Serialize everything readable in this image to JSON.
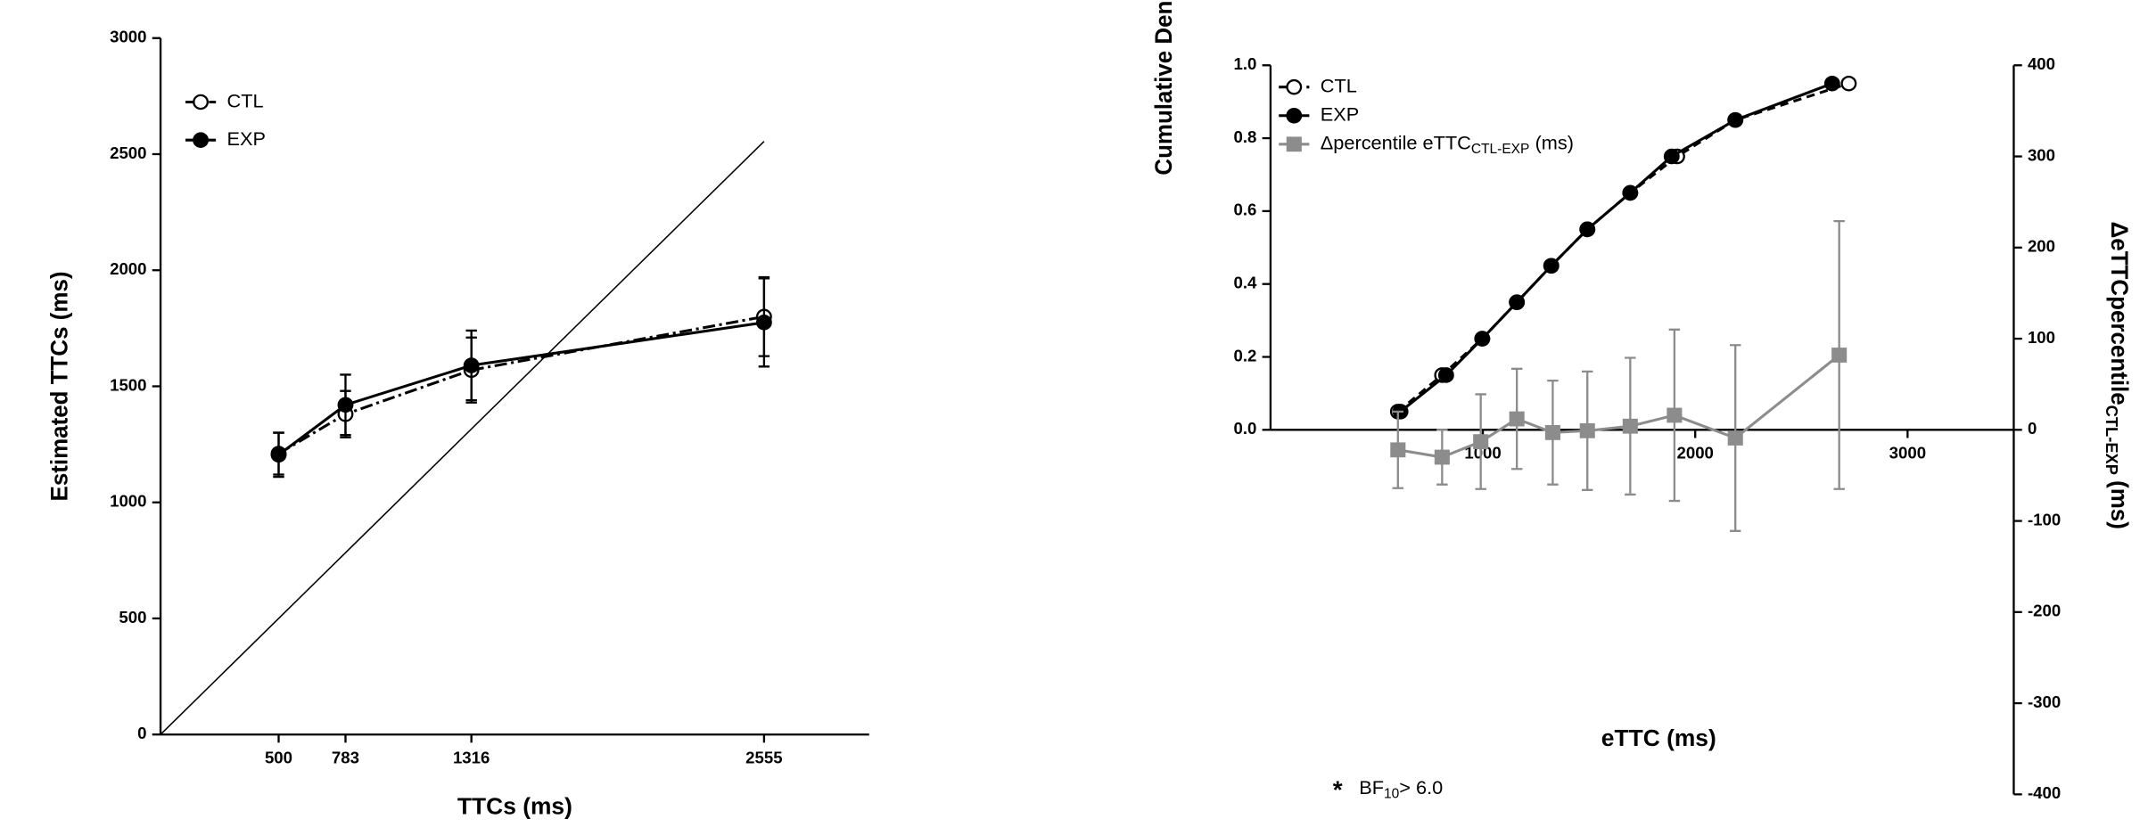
{
  "chart_data": [
    {
      "type": "line",
      "x_label": "TTCs (ms)",
      "y_label": "Estimated TTCs (ms)",
      "xlim": [
        0,
        3000
      ],
      "xticks": [
        500,
        783,
        1316,
        2555
      ],
      "ylim": [
        0,
        3000
      ],
      "yticks": [
        0,
        500,
        1000,
        1500,
        2000,
        2500,
        3000
      ],
      "identity_line": true,
      "x": [
        500,
        783,
        1316,
        2555
      ],
      "series": [
        {
          "name": "CTL",
          "color": "#000000",
          "marker": "open-circle",
          "line_style": "dashdot",
          "values": [
            1210,
            1380,
            1570,
            1800
          ],
          "errors": [
            90,
            100,
            140,
            170
          ]
        },
        {
          "name": "EXP",
          "color": "#000000",
          "marker": "filled-circle",
          "line_style": "solid",
          "values": [
            1205,
            1420,
            1590,
            1775
          ],
          "errors": [
            95,
            130,
            150,
            190
          ]
        }
      ]
    },
    {
      "type": "line",
      "x_label": "eTTC (ms)",
      "y_label": "Cumulative Density",
      "y2_label": "ΔeTTCpercentile",
      "y2_label_subscript": "CTL-EXP",
      "y2_label_suffix": "(ms)",
      "xlim": [
        0,
        3500
      ],
      "xticks": [
        1000,
        2000,
        3000
      ],
      "ylim": [
        0,
        1
      ],
      "yticks": [
        {
          "value": 0,
          "label": "0.0"
        },
        0.2,
        0.4,
        0.6,
        0.8,
        {
          "value": 1,
          "label": "1.0"
        }
      ],
      "y2lim": [
        -400,
        400
      ],
      "y2ticks": [
        -400,
        -300,
        -200,
        -100,
        0,
        100,
        200,
        300,
        400
      ],
      "series": [
        {
          "name": "CTL",
          "color": "#000000",
          "marker": "open-circle",
          "line_style": "dashed",
          "x": [
            600,
            808,
            997,
            1160,
            1322,
            1492,
            1694,
            1915,
            2189,
            2723
          ],
          "values": [
            0.05,
            0.15,
            0.25,
            0.35,
            0.45,
            0.55,
            0.65,
            0.75,
            0.85,
            0.95
          ]
        },
        {
          "name": "EXP",
          "color": "#000000",
          "marker": "filled-circle",
          "line_style": "solid",
          "x": [
            612,
            827,
            997,
            1160,
            1322,
            1492,
            1694,
            1889,
            2189,
            2645
          ],
          "values": [
            0.05,
            0.15,
            0.25,
            0.35,
            0.45,
            0.55,
            0.65,
            0.75,
            0.85,
            0.95
          ]
        },
        {
          "name": "Δpercentile eTTC",
          "name_subscript": "CTL-EXP",
          "name_suffix": "(ms)",
          "color": "#8c8c8c",
          "marker": "square",
          "line_style": "solid",
          "axis": "y2",
          "x": [
            600,
            808,
            990,
            1160,
            1329,
            1492,
            1694,
            1902,
            2189,
            2678
          ],
          "values": [
            -22,
            -30,
            -13,
            12,
            -3,
            -1,
            4,
            16,
            -9,
            82
          ],
          "errors": [
            42,
            30,
            52,
            55,
            57,
            65,
            75,
            94,
            102,
            147
          ]
        }
      ],
      "footnote": {
        "symbol": "*",
        "text": "BF",
        "subscript": "10",
        "suffix": "> 6.0"
      }
    }
  ]
}
